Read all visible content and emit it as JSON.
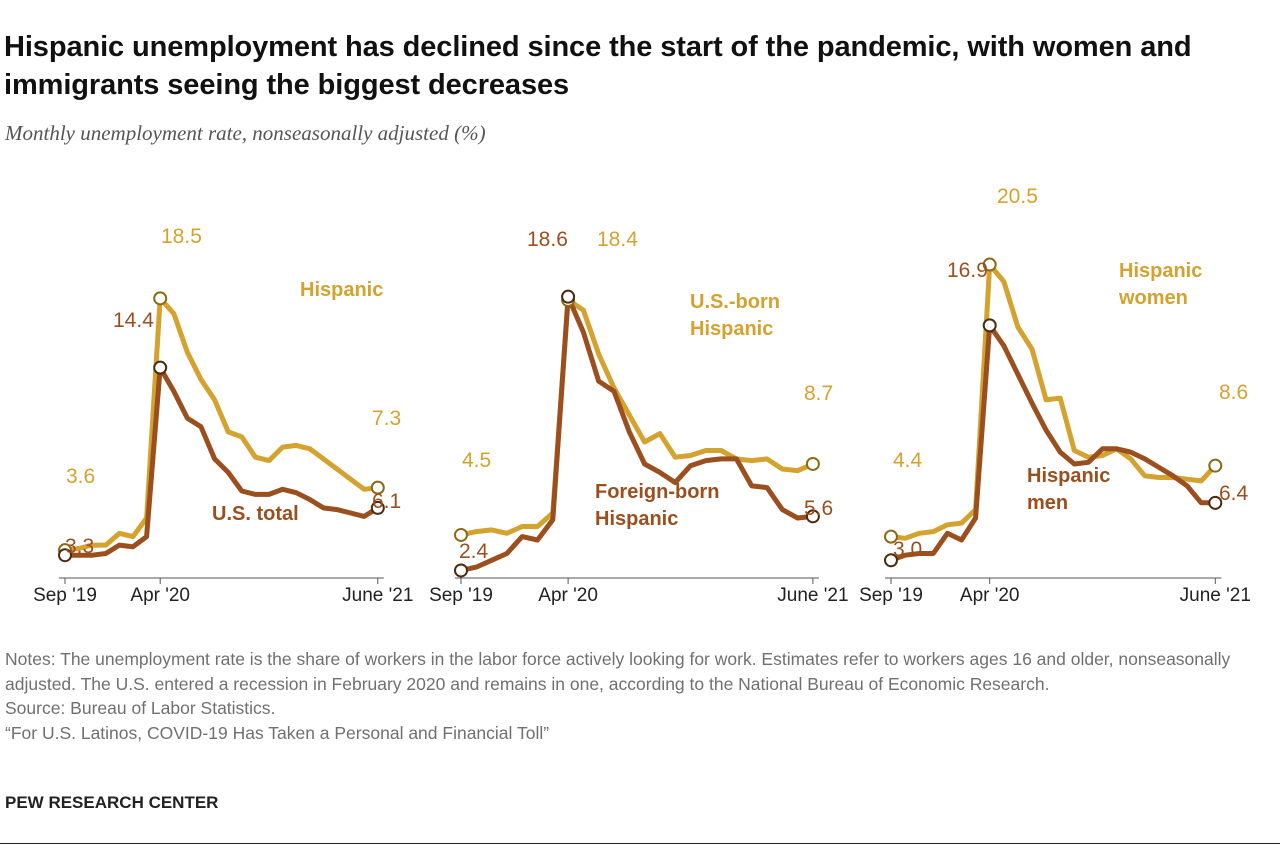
{
  "title": "Hispanic unemployment has declined since the start of the pandemic, with women and immigrants seeing the biggest decreases",
  "subtitle": "Monthly unemployment rate, nonseasonally adjusted (%)",
  "colors": {
    "gold": "#d4a22e",
    "brown": "#9b4f1e"
  },
  "chart_data": [
    {
      "type": "line",
      "xlabels": [
        "Sep '19",
        "Apr '20",
        "June '21"
      ],
      "ylim": [
        0,
        22
      ],
      "series": [
        {
          "name": "Hispanic",
          "label": "Hispanic",
          "color": "gold",
          "start_label": "3.6",
          "peak_label": "18.5",
          "end_label": "7.3",
          "values": [
            3.6,
            3.7,
            3.9,
            3.9,
            4.6,
            4.4,
            5.5,
            18.5,
            17.6,
            15.3,
            13.7,
            12.5,
            10.6,
            10.3,
            9.1,
            8.9,
            9.7,
            9.8,
            9.6,
            9.0,
            8.4,
            7.8,
            7.2,
            7.3
          ]
        },
        {
          "name": "U.S. total",
          "label": "U.S. total",
          "color": "brown",
          "start_label": "3.3",
          "peak_label": "14.4",
          "end_label": "6.1",
          "values": [
            3.3,
            3.3,
            3.3,
            3.4,
            3.9,
            3.8,
            4.4,
            14.4,
            13.0,
            11.4,
            10.9,
            9.0,
            8.2,
            7.1,
            6.9,
            6.9,
            7.2,
            7.0,
            6.6,
            6.1,
            6.0,
            5.8,
            5.6,
            6.1
          ]
        }
      ]
    },
    {
      "type": "line",
      "xlabels": [
        "Sep '19",
        "Apr '20",
        "June '21"
      ],
      "ylim": [
        0,
        22
      ],
      "series": [
        {
          "name": "U.S.-born Hispanic",
          "label": "U.S.-born|Hispanic",
          "color": "gold",
          "start_label": "4.5",
          "peak_label": "18.4",
          "end_label": "8.7",
          "values": [
            4.5,
            4.7,
            4.8,
            4.6,
            5.0,
            5.0,
            5.8,
            18.4,
            17.8,
            15.2,
            13.2,
            11.6,
            10.0,
            10.5,
            9.1,
            9.2,
            9.5,
            9.5,
            9.0,
            8.9,
            9.0,
            8.4,
            8.3,
            8.7
          ]
        },
        {
          "name": "Foreign-born Hispanic",
          "label": "Foreign-born|Hispanic",
          "color": "brown",
          "start_label": "2.4",
          "peak_label": "18.6",
          "end_label": "5.6",
          "values": [
            2.4,
            2.6,
            3.0,
            3.4,
            4.4,
            4.2,
            5.4,
            18.6,
            16.5,
            13.6,
            13.0,
            10.6,
            8.7,
            8.2,
            7.6,
            8.6,
            8.9,
            9.0,
            9.0,
            7.4,
            7.3,
            6.0,
            5.5,
            5.6
          ]
        }
      ]
    },
    {
      "type": "line",
      "xlabels": [
        "Sep '19",
        "Apr '20",
        "June '21"
      ],
      "ylim": [
        0,
        22
      ],
      "series": [
        {
          "name": "Hispanic women",
          "label": "Hispanic|women",
          "color": "gold",
          "start_label": "4.4",
          "peak_label": "20.5",
          "end_label": "8.6",
          "values": [
            4.4,
            4.3,
            4.6,
            4.7,
            5.1,
            5.2,
            6.0,
            20.5,
            19.5,
            16.8,
            15.5,
            12.5,
            12.6,
            9.5,
            9.1,
            9.2,
            9.6,
            9.0,
            8.0,
            7.9,
            7.9,
            7.8,
            7.7,
            8.6
          ]
        },
        {
          "name": "Hispanic men",
          "label": "Hispanic|men",
          "color": "brown",
          "start_label": "3.0",
          "peak_label": "16.9",
          "end_label": "6.4",
          "values": [
            3.0,
            3.3,
            3.4,
            3.4,
            4.6,
            4.2,
            5.5,
            16.9,
            15.7,
            14.0,
            12.3,
            10.7,
            9.4,
            8.7,
            8.8,
            9.6,
            9.6,
            9.4,
            9.0,
            8.5,
            8.0,
            7.4,
            6.4,
            6.4
          ]
        }
      ]
    }
  ],
  "notes": {
    "note": "Notes: The unemployment rate is the share of workers in the labor force actively looking for work. Estimates refer to workers ages 16 and older, nonseasonally adjusted. The U.S. entered a recession in February 2020 and remains in one, according to the National Bureau of Economic Research.",
    "source": "Source: Bureau of Labor Statistics.",
    "report": "“For U.S. Latinos, COVID-19 Has Taken a Personal and Financial Toll”"
  },
  "brand": "PEW RESEARCH CENTER"
}
